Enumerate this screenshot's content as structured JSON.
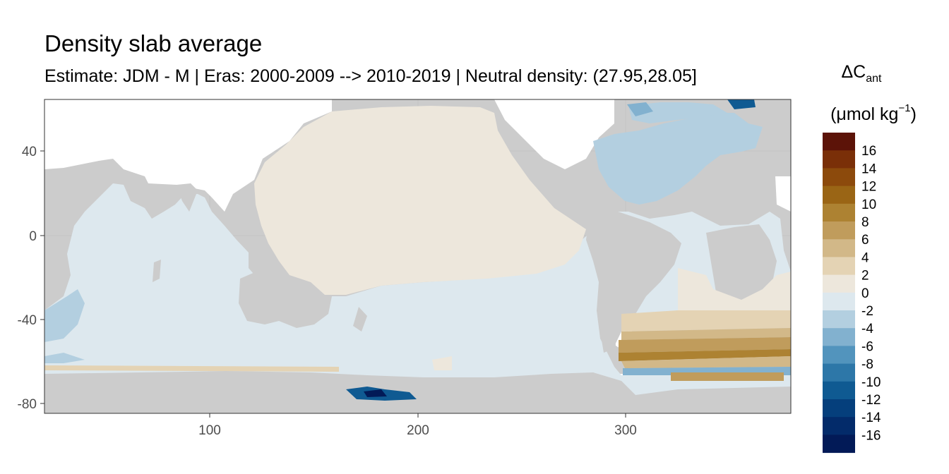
{
  "title": "Density slab average",
  "subtitle": "Estimate: JDM - M | Eras: 2000-2009 --> 2010-2019 | Neutral density: (27.95,28.05]",
  "legend": {
    "symbol": "ΔC",
    "symbol_sub": "ant",
    "unit_open": "(μmol kg",
    "unit_sup": "−1",
    "unit_close": ")",
    "bins": [
      {
        "color": "#5c1308"
      },
      {
        "color": "#7a2f08"
      },
      {
        "color": "#8c4a0c"
      },
      {
        "color": "#9a6515"
      },
      {
        "color": "#ad8232"
      },
      {
        "color": "#c09c5c"
      },
      {
        "color": "#d2b888"
      },
      {
        "color": "#e4d3b4"
      },
      {
        "color": "#ede7dc"
      },
      {
        "color": "#dde8ee"
      },
      {
        "color": "#b3cfe0"
      },
      {
        "color": "#82b1cf"
      },
      {
        "color": "#5294bd"
      },
      {
        "color": "#2d77a8"
      },
      {
        "color": "#0f5a92"
      },
      {
        "color": "#053f7c"
      },
      {
        "color": "#032b6a"
      },
      {
        "color": "#021a57"
      }
    ],
    "labels": [
      "16",
      "14",
      "12",
      "10",
      "8",
      "6",
      "4",
      "2",
      "0",
      "-2",
      "-4",
      "-6",
      "-8",
      "-10",
      "-12",
      "-14",
      "-16"
    ]
  },
  "map": {
    "x_ticks": [
      "100",
      "200",
      "300"
    ],
    "y_ticks": [
      "40",
      "0",
      "-40",
      "-80"
    ],
    "colors": {
      "land": "#cccccc",
      "unsampled": "#ffffff",
      "zero_band": "#ede7dc",
      "neg2_band": "#dde8ee",
      "neg4_band": "#b3cfe0",
      "neg6_band": "#82b1cf",
      "neg10_band": "#0f5a92",
      "neg16_band": "#021a57",
      "pos2_band": "#e4d3b4",
      "pos4_band": "#d2b888",
      "pos6_band": "#c09c5c",
      "pos8_band": "#ad8232"
    }
  }
}
